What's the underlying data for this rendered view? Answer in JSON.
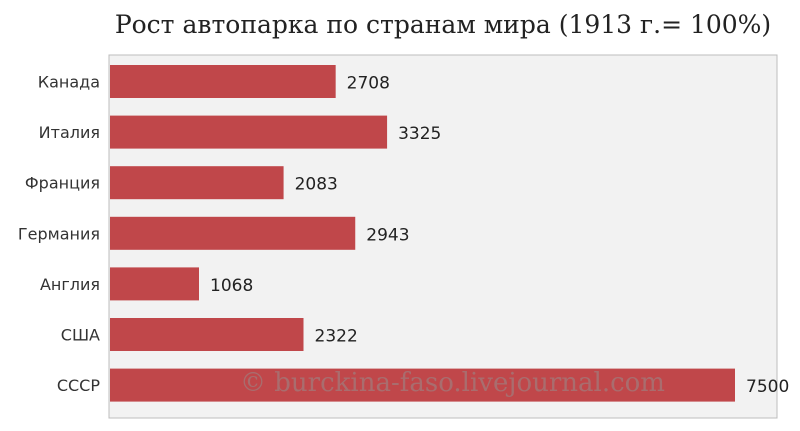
{
  "chart_data": {
    "type": "bar",
    "orientation": "horizontal",
    "title": "Рост автопарка по странам мира (1913 г.= 100%)",
    "categories": [
      "Канада",
      "Италия",
      "Франция",
      "Германия",
      "Англия",
      "США",
      "СССР"
    ],
    "values": [
      2708,
      3325,
      2083,
      2943,
      1068,
      2322,
      7500
    ],
    "xlim": [
      0,
      8000
    ],
    "grid": false,
    "legend": "none",
    "bar_color": "#c0474a",
    "plot_bg": "#f2f2f2",
    "border_color": "#bdbdbd"
  },
  "watermark": "© burckina-faso.livejournal.com"
}
